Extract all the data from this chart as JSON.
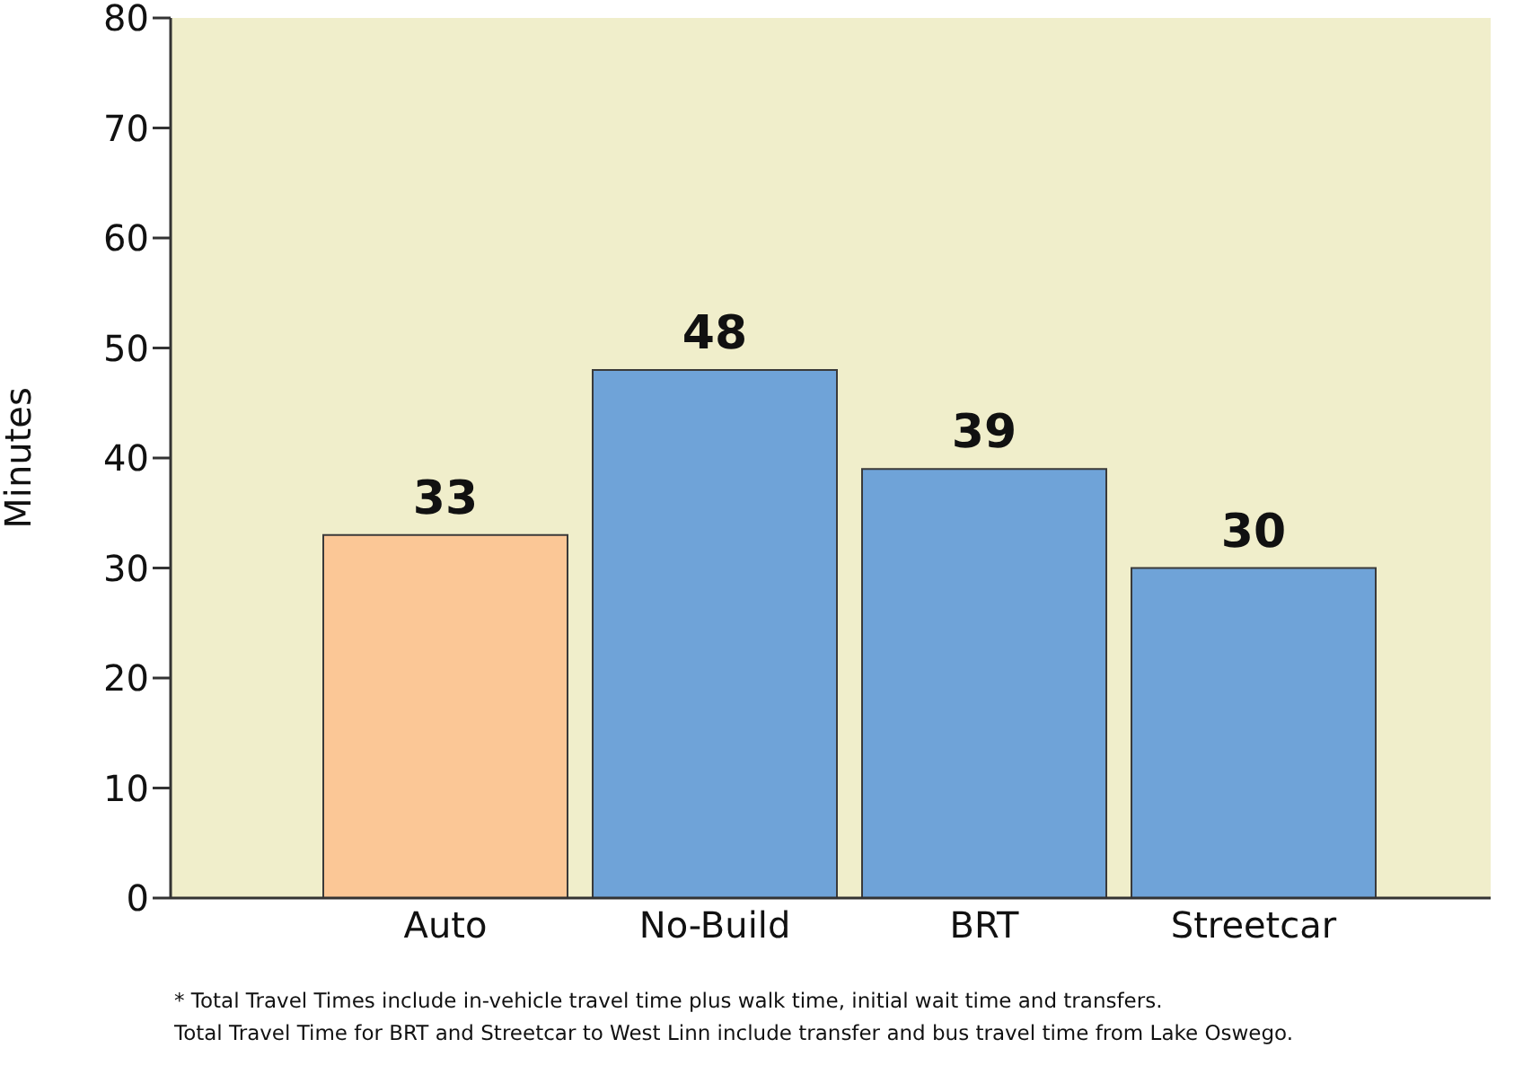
{
  "chart_data": {
    "type": "bar",
    "ylabel": "Minutes",
    "categories": [
      "Auto",
      "No-Build",
      "BRT",
      "Streetcar"
    ],
    "values": [
      33,
      48,
      39,
      30
    ],
    "colors": [
      "#fbc796",
      "#6fa3d8",
      "#6fa3d8",
      "#6fa3d8"
    ],
    "ylim": [
      0,
      80
    ],
    "yticks": [
      0,
      10,
      20,
      30,
      40,
      50,
      60,
      70,
      80
    ],
    "data_labels": true,
    "legend": false,
    "annotations": [
      "* Total Travel Times include in-vehicle travel time plus walk time, initial wait time and transfers.",
      "Total Travel Time for BRT and Streetcar to West Linn include transfer and bus travel time from Lake Oswego."
    ]
  }
}
